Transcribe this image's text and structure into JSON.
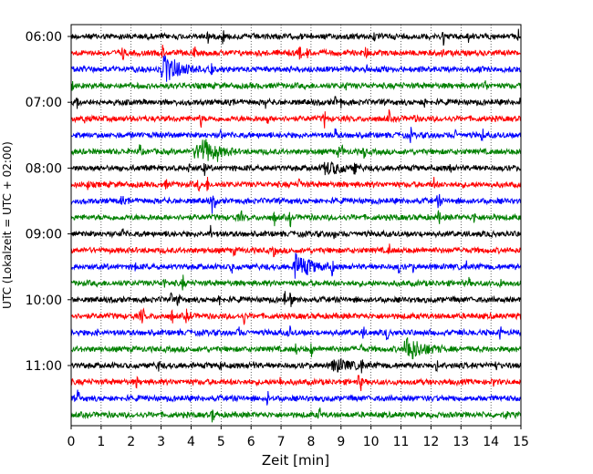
{
  "chart_data": {
    "type": "line",
    "subtype": "helicorder",
    "title": "",
    "xlabel": "Zeit  [min]",
    "ylabel": "UTC (Lokalzeit = UTC + 02:00)",
    "xlim": [
      0,
      15
    ],
    "x_ticks": [
      "0",
      "1",
      "2",
      "3",
      "4",
      "5",
      "6",
      "7",
      "8",
      "9",
      "10",
      "11",
      "12",
      "13",
      "14",
      "15"
    ],
    "x_tick_values": [
      0,
      1,
      2,
      3,
      4,
      5,
      6,
      7,
      8,
      9,
      10,
      11,
      12,
      13,
      14,
      15
    ],
    "y_ticks": [
      "06:00",
      "07:00",
      "08:00",
      "09:00",
      "10:00",
      "11:00"
    ],
    "row_interval_minutes": 15,
    "row_count": 24,
    "row_color_cycle": [
      "#000000",
      "#ff0000",
      "#0000ff",
      "#008000"
    ],
    "grid": "vertical dotted at each minute",
    "events": [
      {
        "row": 2,
        "minute": 3.1,
        "amplitude": "large",
        "note": "spike near 06:30"
      },
      {
        "row": 7,
        "minute": 4.3,
        "amplitude": "large"
      },
      {
        "row": 8,
        "minute": 8.5,
        "amplitude": "medium"
      },
      {
        "row": 14,
        "minute": 7.5,
        "amplitude": "large",
        "note": "burst near 09:30"
      },
      {
        "row": 19,
        "minute": 11.2,
        "amplitude": "large",
        "note": "burst near 10:45"
      },
      {
        "row": 20,
        "minute": 8.8,
        "amplitude": "medium"
      }
    ]
  }
}
